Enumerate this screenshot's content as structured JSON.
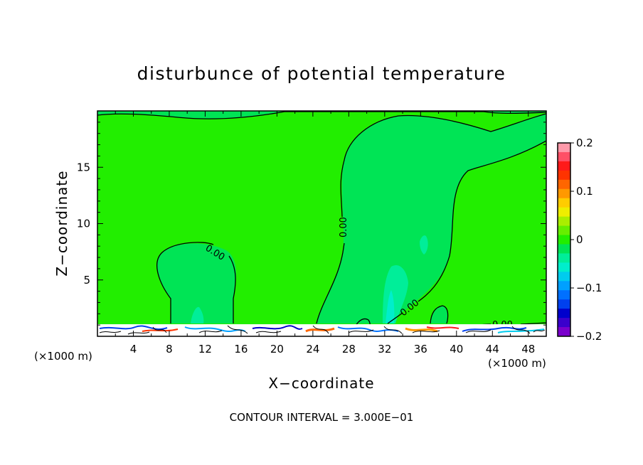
{
  "chart_data": {
    "type": "heatmap",
    "title": "disturbunce of potential temperature",
    "xlabel": "X−coordinate",
    "ylabel": "Z−coordinate",
    "x_unit_left": "(×1000 m)",
    "x_unit_right": "(×1000 m)",
    "xlim": [
      0,
      50
    ],
    "ylim": [
      0,
      20
    ],
    "x_ticks": [
      4,
      8,
      12,
      16,
      20,
      24,
      28,
      32,
      36,
      40,
      44,
      48
    ],
    "y_ticks": [
      5,
      10,
      15
    ],
    "colorbar": {
      "ticks": [
        {
          "value": 0.2,
          "label": "0.2"
        },
        {
          "value": 0.1,
          "label": "0.1"
        },
        {
          "value": 0.0,
          "label": "0"
        },
        {
          "value": -0.1,
          "label": "−0.1"
        },
        {
          "value": -0.2,
          "label": "−0.2"
        }
      ],
      "range": [
        -0.2,
        0.2
      ],
      "colors": [
        "#ff9aaa",
        "#ff5066",
        "#ff1a1a",
        "#ff3300",
        "#ff6600",
        "#ff9900",
        "#ffcc00",
        "#eeee00",
        "#aaee00",
        "#66ee00",
        "#22ee00",
        "#00e455",
        "#00ee99",
        "#00eecc",
        "#00ccee",
        "#00a0ff",
        "#0070ff",
        "#0040ee",
        "#0000cc",
        "#3a00cc",
        "#7a00cc"
      ]
    },
    "contour_labels": [
      "0.00",
      "0.00",
      "0.00",
      "0.00"
    ],
    "footer": "CONTOUR INTERVAL = 3.000E−01"
  }
}
